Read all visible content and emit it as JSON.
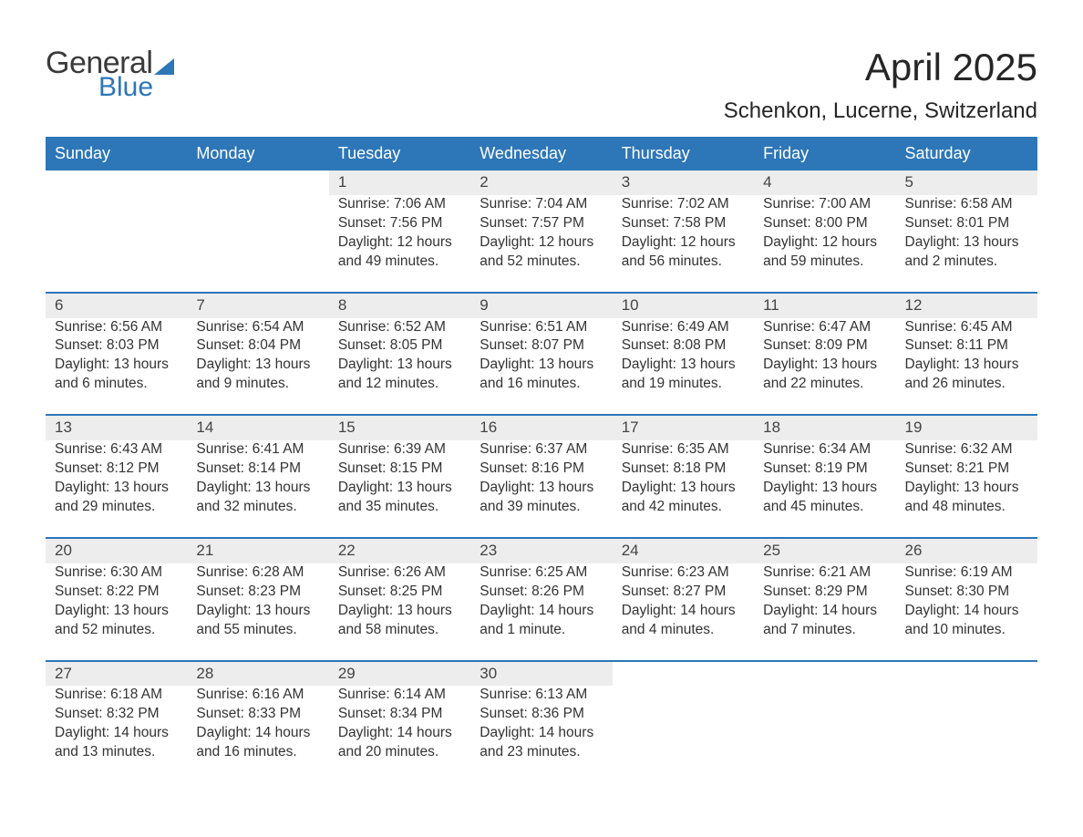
{
  "brand": {
    "general": "General",
    "blue": "Blue",
    "accent": "#2d76b8"
  },
  "title": {
    "month": "April 2025",
    "location": "Schenkon, Lucerne, Switzerland"
  },
  "calendar": {
    "header_bg": "#2d76b8",
    "header_fg": "#ffffff",
    "daynum_bg": "#ededed",
    "border_color": "#2d76b8",
    "text_color": "#333333",
    "font_family": "Arial",
    "day_headers": [
      "Sunday",
      "Monday",
      "Tuesday",
      "Wednesday",
      "Thursday",
      "Friday",
      "Saturday"
    ],
    "weeks": [
      [
        null,
        null,
        {
          "n": "1",
          "sr": "7:06 AM",
          "ss": "7:56 PM",
          "dl": "Daylight: 12 hours and 49 minutes."
        },
        {
          "n": "2",
          "sr": "7:04 AM",
          "ss": "7:57 PM",
          "dl": "Daylight: 12 hours and 52 minutes."
        },
        {
          "n": "3",
          "sr": "7:02 AM",
          "ss": "7:58 PM",
          "dl": "Daylight: 12 hours and 56 minutes."
        },
        {
          "n": "4",
          "sr": "7:00 AM",
          "ss": "8:00 PM",
          "dl": "Daylight: 12 hours and 59 minutes."
        },
        {
          "n": "5",
          "sr": "6:58 AM",
          "ss": "8:01 PM",
          "dl": "Daylight: 13 hours and 2 minutes."
        }
      ],
      [
        {
          "n": "6",
          "sr": "6:56 AM",
          "ss": "8:03 PM",
          "dl": "Daylight: 13 hours and 6 minutes."
        },
        {
          "n": "7",
          "sr": "6:54 AM",
          "ss": "8:04 PM",
          "dl": "Daylight: 13 hours and 9 minutes."
        },
        {
          "n": "8",
          "sr": "6:52 AM",
          "ss": "8:05 PM",
          "dl": "Daylight: 13 hours and 12 minutes."
        },
        {
          "n": "9",
          "sr": "6:51 AM",
          "ss": "8:07 PM",
          "dl": "Daylight: 13 hours and 16 minutes."
        },
        {
          "n": "10",
          "sr": "6:49 AM",
          "ss": "8:08 PM",
          "dl": "Daylight: 13 hours and 19 minutes."
        },
        {
          "n": "11",
          "sr": "6:47 AM",
          "ss": "8:09 PM",
          "dl": "Daylight: 13 hours and 22 minutes."
        },
        {
          "n": "12",
          "sr": "6:45 AM",
          "ss": "8:11 PM",
          "dl": "Daylight: 13 hours and 26 minutes."
        }
      ],
      [
        {
          "n": "13",
          "sr": "6:43 AM",
          "ss": "8:12 PM",
          "dl": "Daylight: 13 hours and 29 minutes."
        },
        {
          "n": "14",
          "sr": "6:41 AM",
          "ss": "8:14 PM",
          "dl": "Daylight: 13 hours and 32 minutes."
        },
        {
          "n": "15",
          "sr": "6:39 AM",
          "ss": "8:15 PM",
          "dl": "Daylight: 13 hours and 35 minutes."
        },
        {
          "n": "16",
          "sr": "6:37 AM",
          "ss": "8:16 PM",
          "dl": "Daylight: 13 hours and 39 minutes."
        },
        {
          "n": "17",
          "sr": "6:35 AM",
          "ss": "8:18 PM",
          "dl": "Daylight: 13 hours and 42 minutes."
        },
        {
          "n": "18",
          "sr": "6:34 AM",
          "ss": "8:19 PM",
          "dl": "Daylight: 13 hours and 45 minutes."
        },
        {
          "n": "19",
          "sr": "6:32 AM",
          "ss": "8:21 PM",
          "dl": "Daylight: 13 hours and 48 minutes."
        }
      ],
      [
        {
          "n": "20",
          "sr": "6:30 AM",
          "ss": "8:22 PM",
          "dl": "Daylight: 13 hours and 52 minutes."
        },
        {
          "n": "21",
          "sr": "6:28 AM",
          "ss": "8:23 PM",
          "dl": "Daylight: 13 hours and 55 minutes."
        },
        {
          "n": "22",
          "sr": "6:26 AM",
          "ss": "8:25 PM",
          "dl": "Daylight: 13 hours and 58 minutes."
        },
        {
          "n": "23",
          "sr": "6:25 AM",
          "ss": "8:26 PM",
          "dl": "Daylight: 14 hours and 1 minute."
        },
        {
          "n": "24",
          "sr": "6:23 AM",
          "ss": "8:27 PM",
          "dl": "Daylight: 14 hours and 4 minutes."
        },
        {
          "n": "25",
          "sr": "6:21 AM",
          "ss": "8:29 PM",
          "dl": "Daylight: 14 hours and 7 minutes."
        },
        {
          "n": "26",
          "sr": "6:19 AM",
          "ss": "8:30 PM",
          "dl": "Daylight: 14 hours and 10 minutes."
        }
      ],
      [
        {
          "n": "27",
          "sr": "6:18 AM",
          "ss": "8:32 PM",
          "dl": "Daylight: 14 hours and 13 minutes."
        },
        {
          "n": "28",
          "sr": "6:16 AM",
          "ss": "8:33 PM",
          "dl": "Daylight: 14 hours and 16 minutes."
        },
        {
          "n": "29",
          "sr": "6:14 AM",
          "ss": "8:34 PM",
          "dl": "Daylight: 14 hours and 20 minutes."
        },
        {
          "n": "30",
          "sr": "6:13 AM",
          "ss": "8:36 PM",
          "dl": "Daylight: 14 hours and 23 minutes."
        },
        null,
        null,
        null
      ]
    ],
    "labels": {
      "sunrise": "Sunrise: ",
      "sunset": "Sunset: "
    }
  }
}
